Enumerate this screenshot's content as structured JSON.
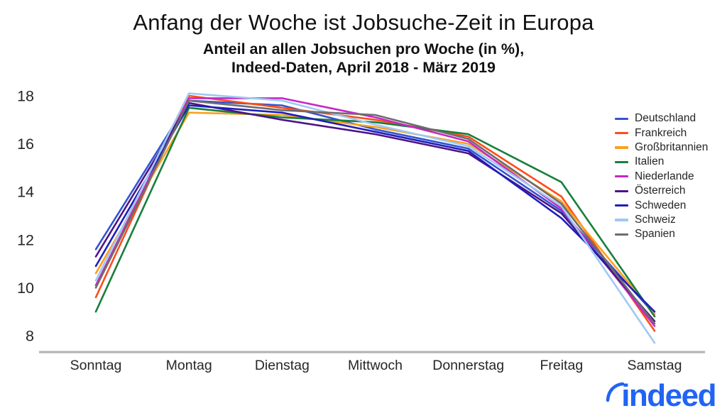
{
  "title": "Anfang der Woche ist Jobsuche-Zeit in Europa",
  "subtitle_line1": "Anteil an allen Jobsuchen pro Woche (in %),",
  "subtitle_line2": "Indeed-Daten, April 2018 - März 2019",
  "logo": {
    "text": "indeed",
    "color": "#2164f3"
  },
  "axis": {
    "line_color": "#b4b4b4",
    "label_color": "#262626"
  },
  "chart_data": {
    "type": "line",
    "title": "Anfang der Woche ist Jobsuche-Zeit in Europa",
    "subtitle": "Anteil an allen Jobsuchen pro Woche (in %), Indeed-Daten, April 2018 - März 2019",
    "xlabel": "",
    "ylabel": "Anteil an allen Jobsuchen pro Woche (in %)",
    "categories": [
      "Sonntag",
      "Montag",
      "Dienstag",
      "Mittwoch",
      "Donnerstag",
      "Freitag",
      "Samstag"
    ],
    "yticks": [
      8,
      10,
      12,
      14,
      16,
      18
    ],
    "ylim": [
      7.4,
      18.4
    ],
    "grid": false,
    "legend_position": "right",
    "series": [
      {
        "name": "Deutschland",
        "color": "#3454d1",
        "values": [
          11.6,
          17.8,
          17.6,
          16.6,
          15.8,
          13.2,
          8.9
        ]
      },
      {
        "name": "Frankreich",
        "color": "#fb4d1d",
        "values": [
          9.6,
          18.0,
          17.5,
          17.0,
          16.3,
          13.8,
          8.2
        ]
      },
      {
        "name": "Großbritannien",
        "color": "#fba01e",
        "values": [
          10.6,
          17.3,
          17.2,
          16.7,
          16.0,
          13.6,
          8.9
        ]
      },
      {
        "name": "Italien",
        "color": "#177f3e",
        "values": [
          9.0,
          17.5,
          17.1,
          16.9,
          16.4,
          14.4,
          8.8
        ]
      },
      {
        "name": "Niederlande",
        "color": "#c627c6",
        "values": [
          10.1,
          17.9,
          17.9,
          17.1,
          16.1,
          13.3,
          8.4
        ]
      },
      {
        "name": "Österreich",
        "color": "#4e1487",
        "values": [
          11.3,
          17.7,
          17.0,
          16.4,
          15.6,
          13.1,
          8.6
        ]
      },
      {
        "name": "Schweden",
        "color": "#1f1fba",
        "values": [
          10.9,
          17.6,
          17.3,
          16.5,
          15.7,
          12.9,
          9.0
        ]
      },
      {
        "name": "Schweiz",
        "color": "#9ec9f2",
        "values": [
          10.3,
          18.1,
          17.8,
          16.8,
          15.9,
          13.4,
          7.7
        ]
      },
      {
        "name": "Spanien",
        "color": "#6d6d6d",
        "values": [
          10.0,
          17.8,
          17.4,
          17.2,
          16.2,
          13.5,
          8.5
        ]
      }
    ]
  }
}
